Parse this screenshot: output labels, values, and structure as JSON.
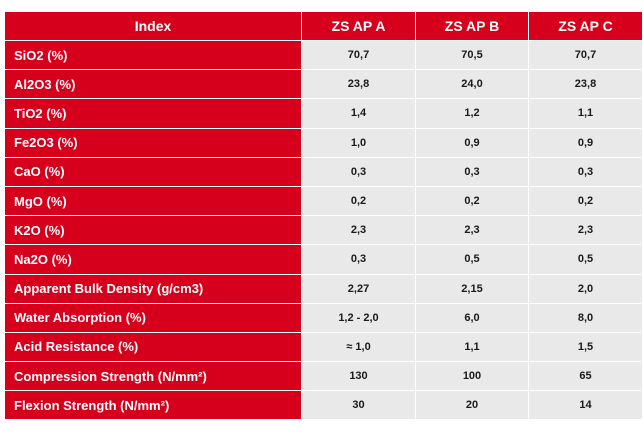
{
  "table": {
    "headers": [
      "Index",
      "ZS AP A",
      "ZS AP B",
      "ZS AP C"
    ],
    "rows": [
      {
        "label": "SiO2 (%)",
        "values": [
          "70,7",
          "70,5",
          "70,7"
        ]
      },
      {
        "label": "Al2O3 (%)",
        "values": [
          "23,8",
          "24,0",
          "23,8"
        ]
      },
      {
        "label": "TiO2 (%)",
        "values": [
          "1,4",
          "1,2",
          "1,1"
        ]
      },
      {
        "label": "Fe2O3 (%)",
        "values": [
          "1,0",
          "0,9",
          "0,9"
        ]
      },
      {
        "label": "CaO (%)",
        "values": [
          "0,3",
          "0,3",
          "0,3"
        ]
      },
      {
        "label": "MgO (%)",
        "values": [
          "0,2",
          "0,2",
          "0,2"
        ]
      },
      {
        "label": "K2O (%)",
        "values": [
          "2,3",
          "2,3",
          "2,3"
        ]
      },
      {
        "label": "Na2O (%)",
        "values": [
          "0,3",
          "0,5",
          "0,5"
        ]
      },
      {
        "label": "Apparent Bulk Density (g/cm3)",
        "values": [
          "2,27",
          "2,15",
          "2,0"
        ]
      },
      {
        "label": "Water Absorption (%)",
        "values": [
          "1,2 - 2,0",
          "6,0",
          "8,0"
        ]
      },
      {
        "label": "Acid Resistance (%)",
        "values": [
          "≈ 1,0",
          "1,1",
          "1,5"
        ]
      },
      {
        "label": "Compression Strength (N/mm²)",
        "values": [
          "130",
          "100",
          "65"
        ]
      },
      {
        "label": "Flexion Strength (N/mm²)",
        "values": [
          "30",
          "20",
          "14"
        ]
      }
    ]
  },
  "colors": {
    "header_red": "#d6001c",
    "cell_gray": "#e9e9ea",
    "text_white": "#ffffff",
    "text_dark": "#1a1a1a"
  }
}
